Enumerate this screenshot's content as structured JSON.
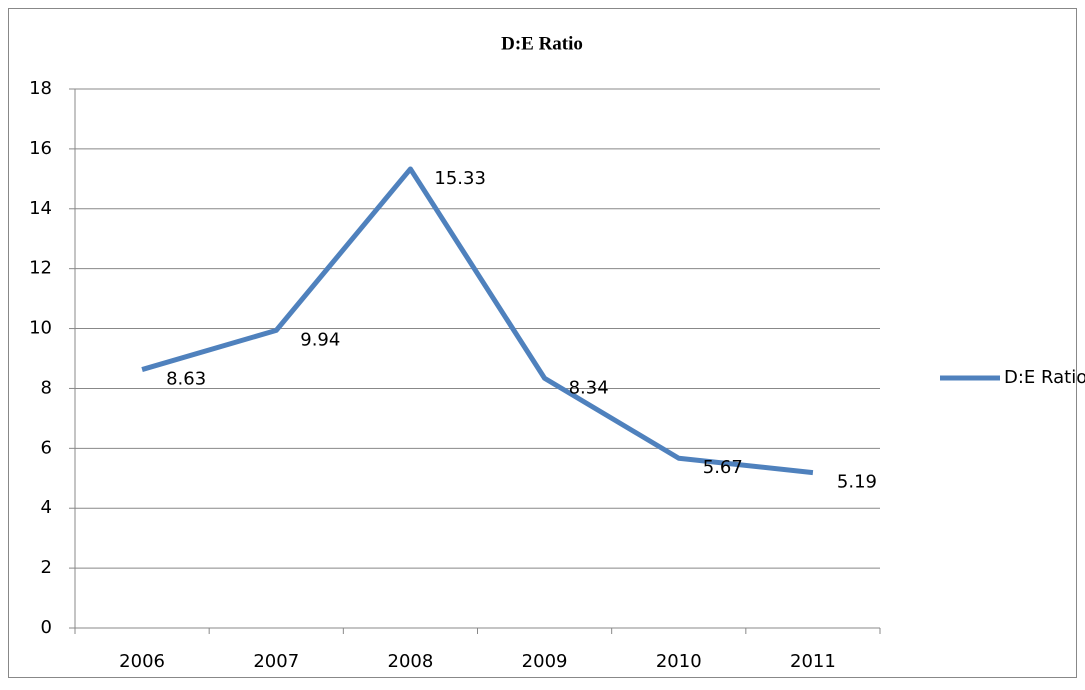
{
  "chart_data": {
    "type": "line",
    "title": "D:E Ratio",
    "categories": [
      "2006",
      "2007",
      "2008",
      "2009",
      "2010",
      "2011"
    ],
    "series": [
      {
        "name": "D:E Ratio",
        "color": "#4f81bd",
        "values": [
          8.63,
          9.94,
          15.33,
          8.34,
          5.67,
          5.19
        ]
      }
    ],
    "ylim": [
      0,
      18
    ],
    "yticks": [
      0,
      2,
      4,
      6,
      8,
      10,
      12,
      14,
      16,
      18
    ],
    "grid": true,
    "legend": "right"
  }
}
